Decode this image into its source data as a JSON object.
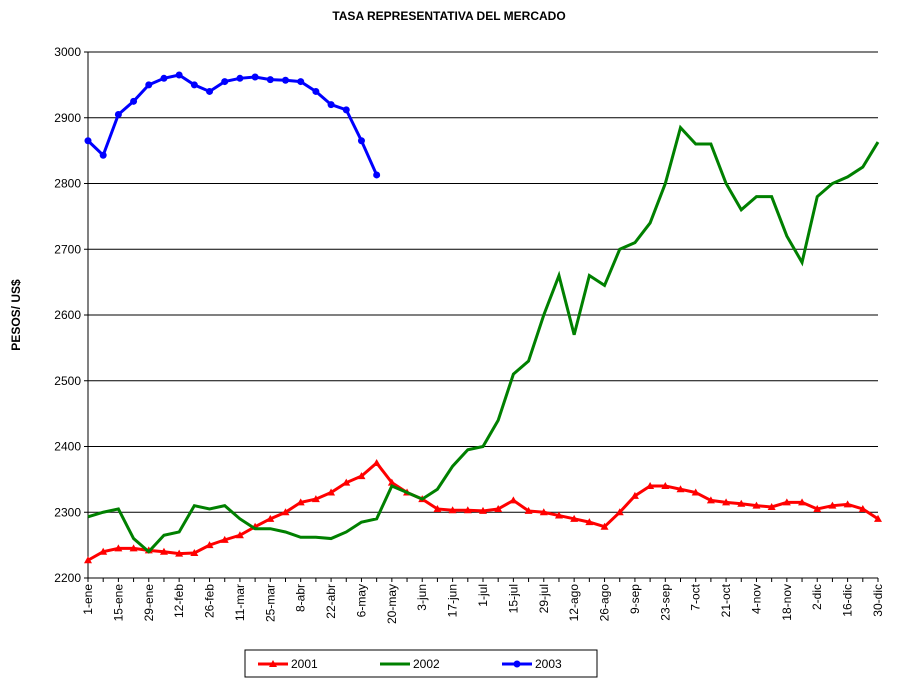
{
  "chart_data": {
    "type": "line",
    "title": "TASA REPRESENTATIVA DEL MERCADO",
    "y_label": "PESOS/ US$",
    "categories": [
      "1-ene",
      null,
      "15-ene",
      null,
      "29-ene",
      null,
      "12-feb",
      null,
      "26-feb",
      null,
      "11-mar",
      null,
      "25-mar",
      null,
      "8-abr",
      null,
      "22-abr",
      null,
      "6-may",
      null,
      "20-may",
      null,
      "3-jun",
      null,
      "17-jun",
      null,
      "1-jul",
      null,
      "15-jul",
      null,
      "29-jul",
      null,
      "12-ago",
      null,
      "26-ago",
      null,
      "9-sep",
      null,
      "23-sep",
      null,
      "7-oct",
      null,
      "21-oct",
      null,
      "4-nov",
      null,
      "18-nov",
      null,
      "2-dic",
      null,
      "16-dic",
      null,
      "30-dic"
    ],
    "series": [
      {
        "name": "2001",
        "color": "#ff0000",
        "marker": "triangle",
        "values": [
          2227,
          2240,
          2245,
          2245,
          2242,
          2240,
          2237,
          2238,
          2250,
          2258,
          2265,
          2278,
          2290,
          2300,
          2315,
          2320,
          2330,
          2345,
          2355,
          2375,
          2345,
          2330,
          2320,
          2305,
          2303,
          2303,
          2302,
          2305,
          2318,
          2302,
          2300,
          2295,
          2290,
          2285,
          2278,
          2300,
          2325,
          2340,
          2340,
          2335,
          2330,
          2318,
          2315,
          2313,
          2310,
          2308,
          2315,
          2315,
          2305,
          2310,
          2312,
          2305,
          2290
        ]
      },
      {
        "name": "2002",
        "color": "#008000",
        "values": [
          2293,
          2300,
          2305,
          2260,
          2240,
          2265,
          2270,
          2310,
          2305,
          2310,
          2290,
          2275,
          2275,
          2270,
          2262,
          2262,
          2260,
          2270,
          2285,
          2290,
          2340,
          2330,
          2320,
          2335,
          2370,
          2395,
          2400,
          2440,
          2510,
          2530,
          2600,
          2660,
          2570,
          2660,
          2645,
          2700,
          2710,
          2740,
          2800,
          2885,
          2860,
          2860,
          2800,
          2760,
          2780,
          2780,
          2720,
          2680,
          2780,
          2800,
          2810,
          2825,
          2863
        ]
      },
      {
        "name": "2003",
        "color": "#0000ff",
        "marker": "circle",
        "values": [
          2865,
          2843,
          2905,
          2925,
          2950,
          2960,
          2965,
          2950,
          2940,
          2955,
          2960,
          2962,
          2958,
          2957,
          2955,
          2940,
          2920,
          2912,
          2865,
          2813,
          null,
          null,
          null,
          null,
          null,
          null,
          null,
          null,
          null,
          null,
          null,
          null,
          null,
          null,
          null,
          null,
          null,
          null,
          null,
          null,
          null,
          null,
          null,
          null,
          null,
          null,
          null,
          null,
          null,
          null,
          null,
          null,
          null
        ]
      }
    ],
    "ylim": [
      2200,
      3000
    ],
    "yticks": [
      2200,
      2300,
      2400,
      2500,
      2600,
      2700,
      2800,
      2900,
      3000
    ],
    "grid": true,
    "legend": "bottom"
  }
}
